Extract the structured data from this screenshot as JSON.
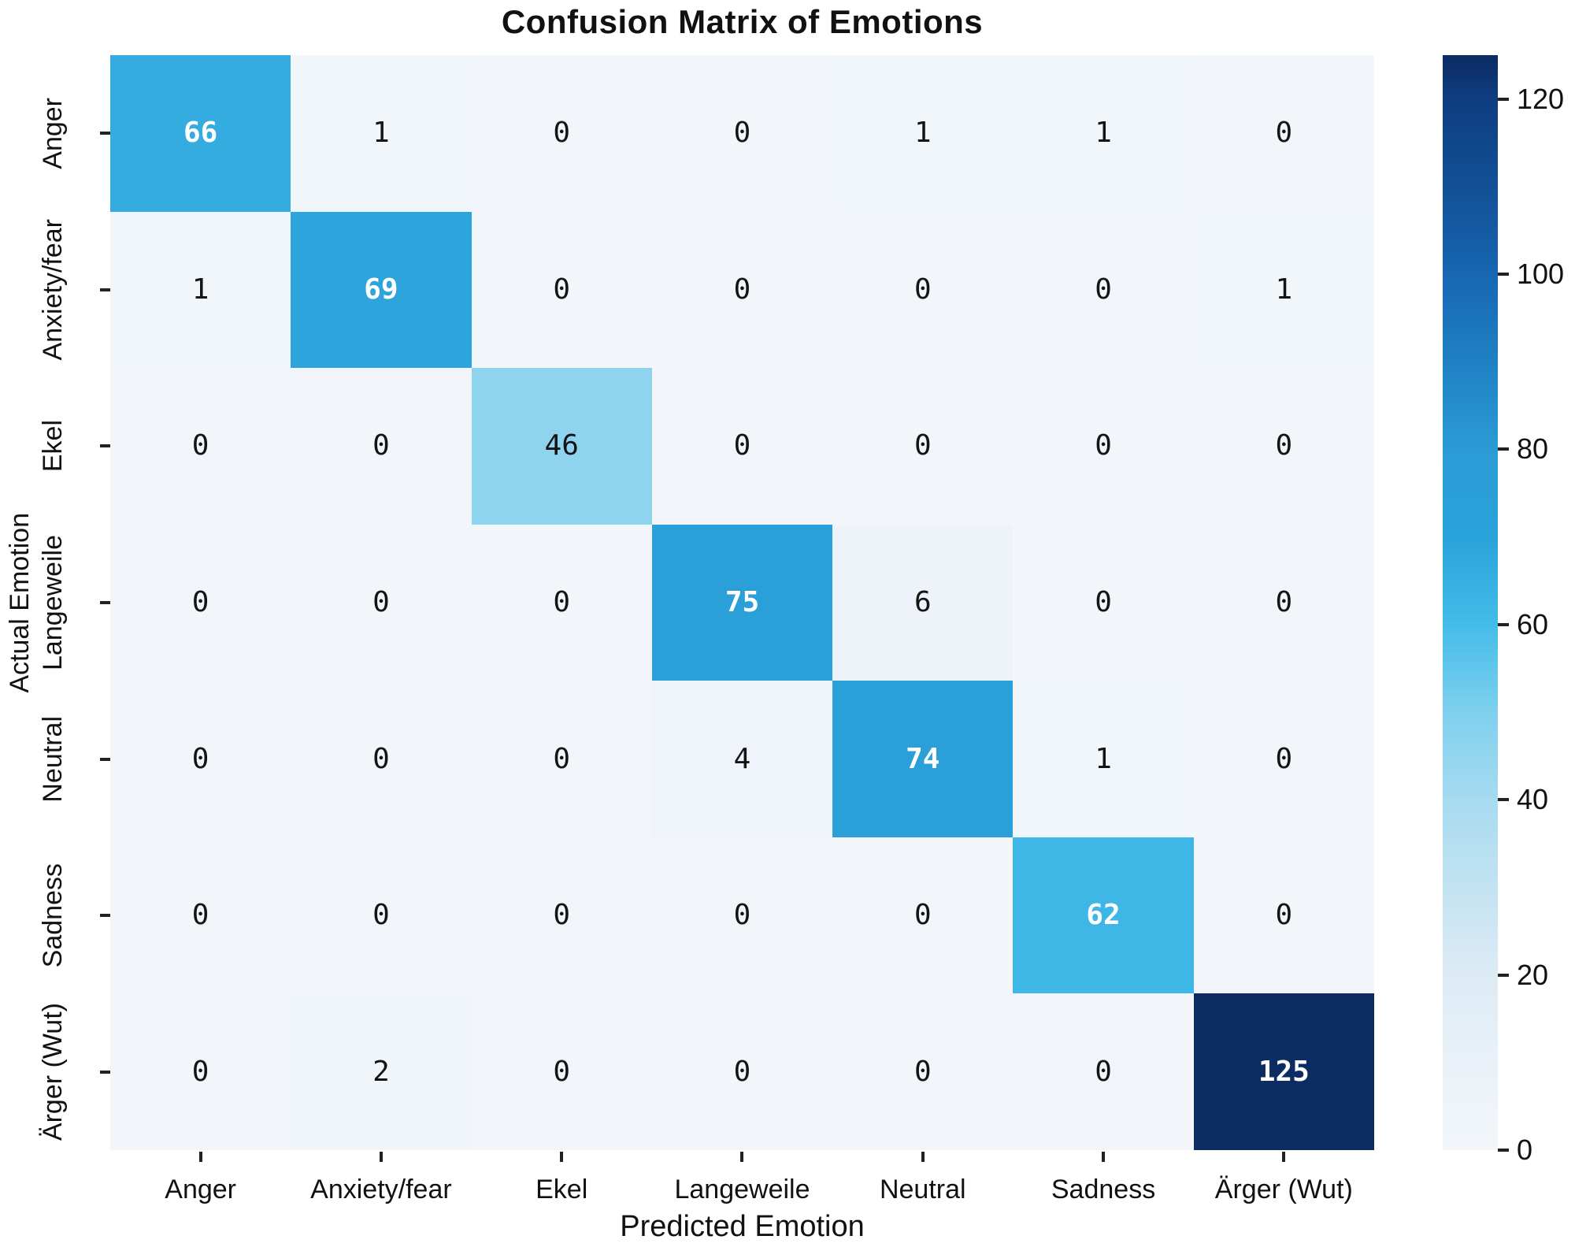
{
  "chart_data": {
    "type": "heatmap",
    "title": "Confusion Matrix of Emotions",
    "xlabel": "Predicted Emotion",
    "ylabel": "Actual Emotion",
    "x_categories": [
      "Anger",
      "Anxiety/fear",
      "Ekel",
      "Langeweile",
      "Neutral",
      "Sadness",
      "Ärger (Wut)"
    ],
    "y_categories": [
      "Anger",
      "Anxiety/fear",
      "Ekel",
      "Langeweile",
      "Neutral",
      "Sadness",
      "Ärger (Wut)"
    ],
    "matrix": [
      [
        66,
        1,
        0,
        0,
        1,
        1,
        0
      ],
      [
        1,
        69,
        0,
        0,
        0,
        0,
        1
      ],
      [
        0,
        0,
        46,
        0,
        0,
        0,
        0
      ],
      [
        0,
        0,
        0,
        75,
        6,
        0,
        0
      ],
      [
        0,
        0,
        0,
        4,
        74,
        1,
        0
      ],
      [
        0,
        0,
        0,
        0,
        0,
        62,
        0
      ],
      [
        0,
        2,
        0,
        0,
        0,
        0,
        125
      ]
    ],
    "vmin": 0,
    "vmax": 125,
    "annotations": true,
    "grid": false,
    "legend_position": "none",
    "colorbar": {
      "position": "right",
      "ticks": [
        0,
        20,
        40,
        60,
        80,
        100,
        120
      ]
    },
    "colormap": {
      "name": "Blues",
      "stops": [
        [
          0,
          "#f2f6fa"
        ],
        [
          10,
          "#e9f1f8"
        ],
        [
          20,
          "#ddebf5"
        ],
        [
          30,
          "#c3e3f2"
        ],
        [
          40,
          "#a6dbf0"
        ],
        [
          50,
          "#7fd0ee"
        ],
        [
          60,
          "#44bce9"
        ],
        [
          70,
          "#2aa2da"
        ],
        [
          80,
          "#2b9bd5"
        ],
        [
          90,
          "#1f81c4"
        ],
        [
          100,
          "#1766b1"
        ],
        [
          110,
          "#125095"
        ],
        [
          120,
          "#0e3d80"
        ],
        [
          125,
          "#0c2c62"
        ]
      ]
    },
    "annotation_text_colors": {
      "dark": "#141414",
      "light": "#ffffff"
    }
  }
}
